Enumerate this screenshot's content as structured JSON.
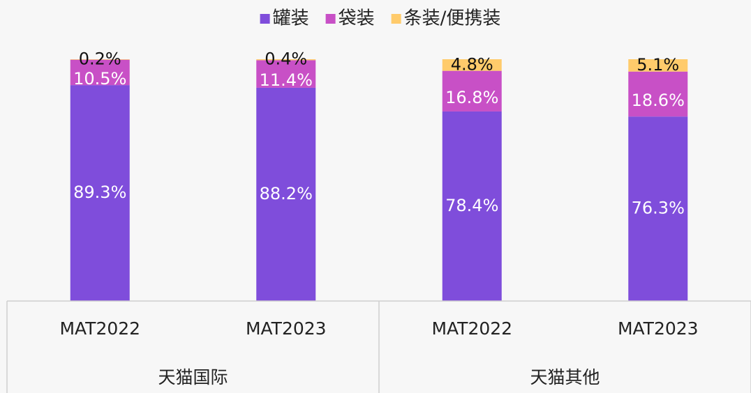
{
  "chart_data": {
    "type": "stacked_bar",
    "groups": [
      "天猫国际",
      "天猫其他"
    ],
    "categories": [
      "MAT2022",
      "MAT2023",
      "MAT2022",
      "MAT2023"
    ],
    "ylim": [
      0,
      100
    ],
    "legend": "top",
    "series": [
      {
        "name": "罐装",
        "color": "#7f4ddb",
        "values": [
          89.3,
          88.2,
          78.4,
          76.3
        ],
        "value_labels": [
          "89.3%",
          "88.2%",
          "78.4%",
          "76.3%"
        ]
      },
      {
        "name": "袋装",
        "color": "#c850c6",
        "values": [
          10.5,
          11.4,
          16.8,
          18.6
        ],
        "value_labels": [
          "10.5%",
          "11.4%",
          "16.8%",
          "18.6%"
        ]
      },
      {
        "name": "条装/便携装",
        "color": "#ffcb6b",
        "values": [
          0.2,
          0.4,
          4.8,
          5.1
        ],
        "value_labels": [
          "0.2%",
          "0.4%",
          "4.8%",
          "5.1%"
        ]
      }
    ]
  }
}
